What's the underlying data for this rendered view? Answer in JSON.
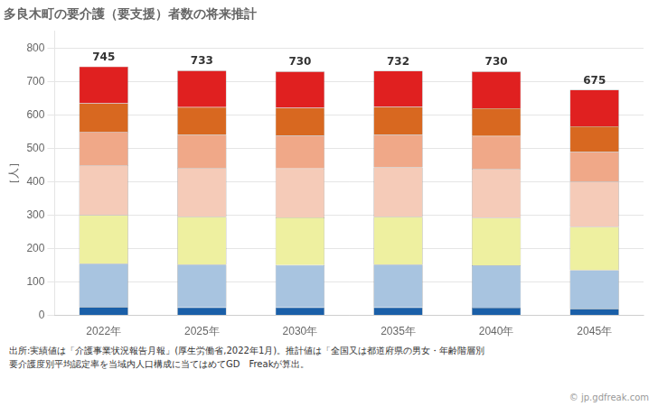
{
  "chart_data": {
    "type": "bar",
    "stacked": true,
    "title": "多良木町の要介護（要支援）者数の将来推計",
    "ylabel": "［人］",
    "categories": [
      "2022年",
      "2025年",
      "2030年",
      "2035年",
      "2040年",
      "2045年"
    ],
    "series": [
      {
        "color": "#1a5fa8",
        "values": [
          25,
          24,
          24,
          24,
          23,
          20
        ]
      },
      {
        "color": "#a8c4e0",
        "values": [
          130,
          128,
          127,
          128,
          127,
          115
        ]
      },
      {
        "color": "#eef0a0",
        "values": [
          145,
          143,
          142,
          143,
          142,
          130
        ]
      },
      {
        "color": "#f5cbb8",
        "values": [
          150,
          147,
          147,
          148,
          147,
          135
        ]
      },
      {
        "color": "#f0a888",
        "values": [
          100,
          98,
          98,
          98,
          98,
          90
        ]
      },
      {
        "color": "#d86820",
        "values": [
          85,
          83,
          83,
          83,
          83,
          76
        ]
      },
      {
        "color": "#e02020",
        "values": [
          110,
          110,
          109,
          108,
          110,
          109
        ]
      }
    ],
    "totals": [
      745,
      733,
      730,
      732,
      730,
      675
    ],
    "ylim": [
      0,
      850
    ],
    "yticks": [
      0,
      100,
      200,
      300,
      400,
      500,
      600,
      700,
      800
    ],
    "grid": true,
    "footnote": [
      "出所:実績値は「介護事業状況報告月報」(厚生労働省,2022年1月)。推計値は「全国又は都道府県の男女・年齢階層別",
      "要介護度別平均認定率を当域内人口構成に当てはめてGD　Freakが算出。"
    ],
    "watermark": "© jp.gdfreak.com"
  }
}
